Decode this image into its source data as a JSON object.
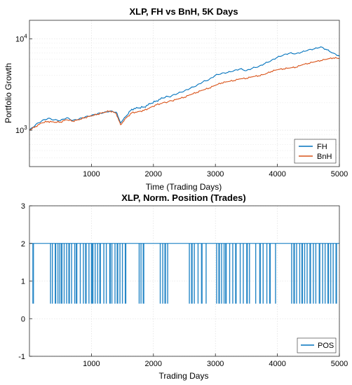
{
  "chart_data": [
    {
      "type": "line",
      "title": "XLP, FH vs BnH, 5K Days",
      "xlabel": "Time (Trading Days)",
      "ylabel": "Portfolio Growth",
      "xlim": [
        0,
        5000
      ],
      "ylim": [
        400,
        16000
      ],
      "yscale": "log",
      "xticks": [
        "1000",
        "2000",
        "3000",
        "4000",
        "5000"
      ],
      "yticks": [
        {
          "value": 1000,
          "base": "10",
          "exp": "3"
        },
        {
          "value": 10000,
          "base": "10",
          "exp": "4"
        }
      ],
      "grid": true,
      "legend_location": "bottom-right",
      "series": [
        {
          "name": "FH",
          "color": "#0072BD",
          "points": [
            [
              0,
              1000
            ],
            [
              100,
              1150
            ],
            [
              200,
              1270
            ],
            [
              300,
              1350
            ],
            [
              400,
              1300
            ],
            [
              500,
              1280
            ],
            [
              600,
              1370
            ],
            [
              700,
              1280
            ],
            [
              800,
              1330
            ],
            [
              900,
              1400
            ],
            [
              1000,
              1450
            ],
            [
              1100,
              1520
            ],
            [
              1200,
              1560
            ],
            [
              1300,
              1620
            ],
            [
              1400,
              1580
            ],
            [
              1470,
              1200
            ],
            [
              1550,
              1400
            ],
            [
              1650,
              1700
            ],
            [
              1750,
              1750
            ],
            [
              1850,
              1800
            ],
            [
              1950,
              1950
            ],
            [
              2050,
              2100
            ],
            [
              2150,
              2250
            ],
            [
              2300,
              2400
            ],
            [
              2400,
              2550
            ],
            [
              2500,
              2700
            ],
            [
              2600,
              2900
            ],
            [
              2700,
              3100
            ],
            [
              2800,
              3400
            ],
            [
              2900,
              3600
            ],
            [
              3000,
              4000
            ],
            [
              3100,
              4200
            ],
            [
              3200,
              4300
            ],
            [
              3300,
              4500
            ],
            [
              3400,
              4700
            ],
            [
              3500,
              4500
            ],
            [
              3600,
              4800
            ],
            [
              3700,
              5000
            ],
            [
              3800,
              5400
            ],
            [
              3900,
              5800
            ],
            [
              4000,
              6300
            ],
            [
              4100,
              6700
            ],
            [
              4200,
              7000
            ],
            [
              4300,
              6900
            ],
            [
              4400,
              7200
            ],
            [
              4500,
              7600
            ],
            [
              4600,
              7800
            ],
            [
              4700,
              8200
            ],
            [
              4800,
              7600
            ],
            [
              4900,
              7000
            ],
            [
              5000,
              6500
            ]
          ]
        },
        {
          "name": "BnH",
          "color": "#D95319",
          "points": [
            [
              0,
              1000
            ],
            [
              100,
              1100
            ],
            [
              200,
              1200
            ],
            [
              300,
              1250
            ],
            [
              400,
              1220
            ],
            [
              500,
              1230
            ],
            [
              600,
              1300
            ],
            [
              700,
              1260
            ],
            [
              800,
              1300
            ],
            [
              900,
              1380
            ],
            [
              1000,
              1430
            ],
            [
              1100,
              1500
            ],
            [
              1200,
              1560
            ],
            [
              1300,
              1630
            ],
            [
              1400,
              1520
            ],
            [
              1470,
              1150
            ],
            [
              1550,
              1350
            ],
            [
              1650,
              1550
            ],
            [
              1750,
              1600
            ],
            [
              1850,
              1650
            ],
            [
              1950,
              1780
            ],
            [
              2050,
              1900
            ],
            [
              2150,
              2000
            ],
            [
              2300,
              2100
            ],
            [
              2400,
              2200
            ],
            [
              2500,
              2300
            ],
            [
              2600,
              2450
            ],
            [
              2700,
              2600
            ],
            [
              2800,
              2750
            ],
            [
              2900,
              2900
            ],
            [
              3000,
              3100
            ],
            [
              3100,
              3300
            ],
            [
              3200,
              3400
            ],
            [
              3300,
              3500
            ],
            [
              3400,
              3650
            ],
            [
              3500,
              3700
            ],
            [
              3600,
              3850
            ],
            [
              3700,
              3950
            ],
            [
              3800,
              4100
            ],
            [
              3900,
              4400
            ],
            [
              4000,
              4600
            ],
            [
              4100,
              4700
            ],
            [
              4200,
              4800
            ],
            [
              4300,
              4900
            ],
            [
              4400,
              5200
            ],
            [
              4500,
              5400
            ],
            [
              4600,
              5600
            ],
            [
              4700,
              5800
            ],
            [
              4800,
              6000
            ],
            [
              4900,
              6200
            ],
            [
              5000,
              6100
            ]
          ]
        }
      ]
    },
    {
      "type": "line",
      "title": "XLP, Norm. Position (Trades)",
      "xlabel": "Trading Days",
      "ylabel": "",
      "xlim": [
        0,
        5000
      ],
      "ylim": [
        -1,
        3
      ],
      "xticks": [
        "1000",
        "2000",
        "3000",
        "4000",
        "5000"
      ],
      "yticks": [
        "-1",
        "0",
        "1",
        "2",
        "3"
      ],
      "grid": true,
      "legend_location": "bottom-right",
      "series": [
        {
          "name": "POS",
          "color": "#0072BD",
          "values": {
            "high": 2,
            "low": 0.4
          },
          "trade_days": [
            60,
            340,
            370,
            420,
            460,
            490,
            520,
            560,
            600,
            640,
            680,
            730,
            760,
            820,
            870,
            910,
            960,
            1000,
            1020,
            1060,
            1100,
            1140,
            1200,
            1240,
            1300,
            1330,
            1380,
            1420,
            1460,
            1500,
            1550,
            1770,
            1800,
            1840,
            2110,
            2150,
            2190,
            2230,
            2580,
            2620,
            2660,
            2720,
            2780,
            2850,
            3020,
            3060,
            3100,
            3140,
            3170,
            3230,
            3280,
            3330,
            3400,
            3450,
            3510,
            3550,
            3650,
            3720,
            3770,
            3830,
            3880,
            3970,
            4230,
            4270,
            4310,
            4360,
            4400,
            4440,
            4480,
            4530,
            4580,
            4620,
            4680,
            4730,
            4770,
            4820,
            4860,
            4900,
            4950
          ]
        }
      ]
    }
  ]
}
